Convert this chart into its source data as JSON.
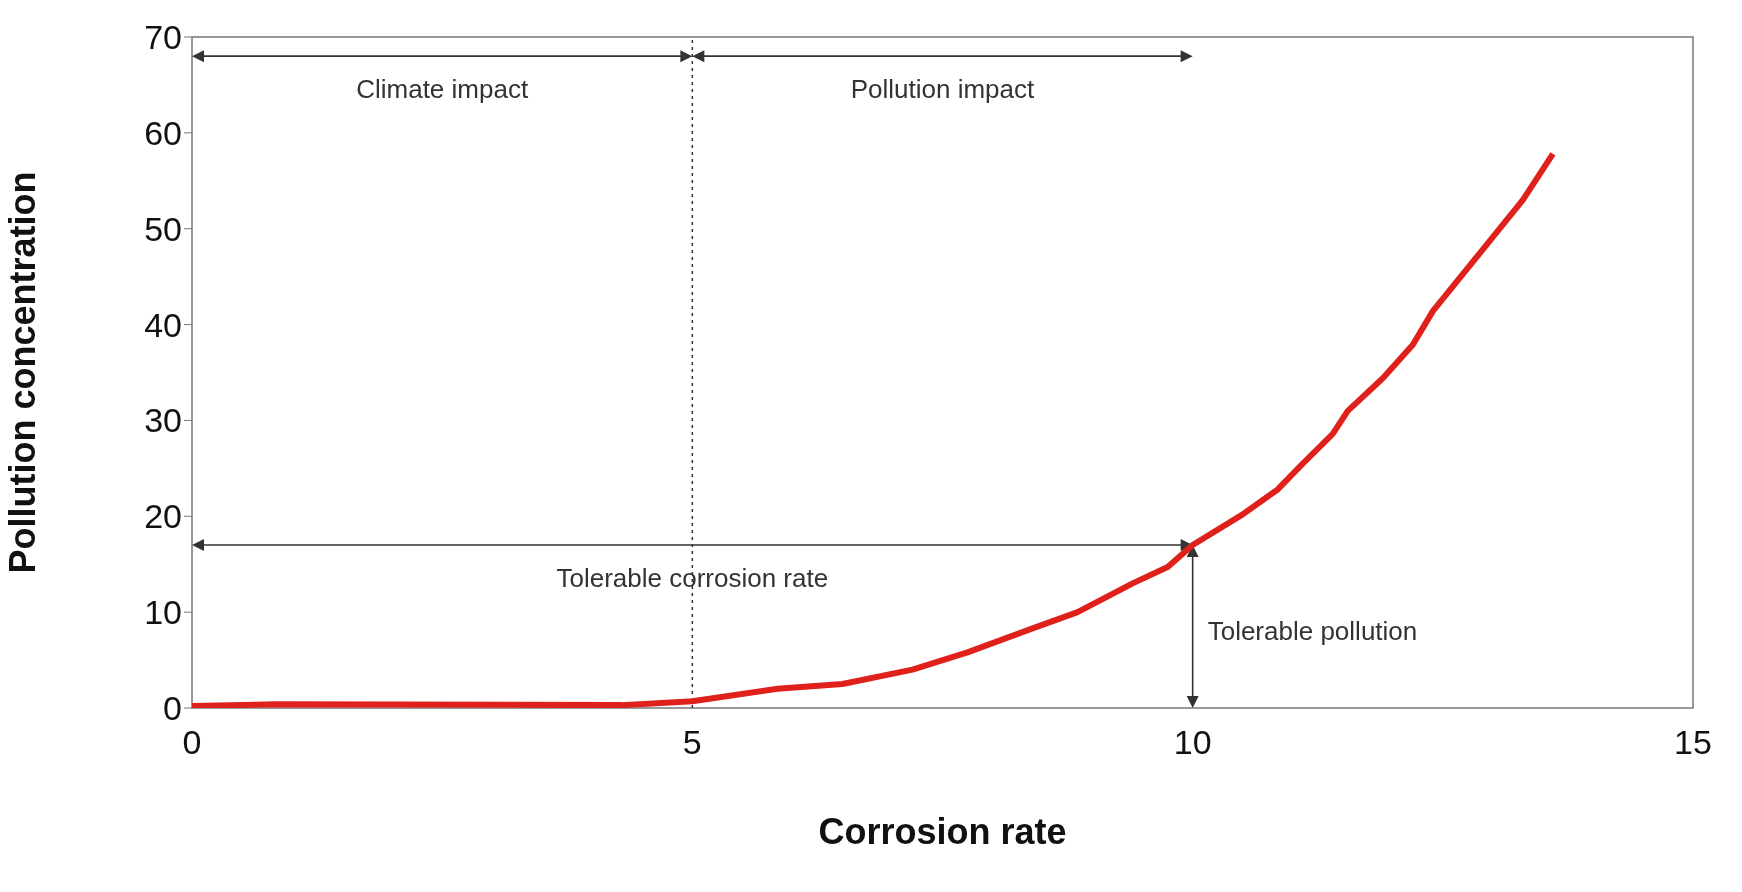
{
  "chart_data": {
    "type": "line",
    "xlabel": "Corrosion  rate",
    "ylabel": "Pollution  concentration",
    "xlim": [
      0,
      15
    ],
    "ylim": [
      0,
      70
    ],
    "xticks": [
      0,
      5,
      10,
      15
    ],
    "yticks": [
      0,
      10,
      20,
      30,
      40,
      50,
      60,
      70
    ],
    "grid": false,
    "legend": false,
    "marker": "none",
    "line_style": "solid",
    "series": [
      {
        "color": "#e0201b",
        "x": [
          0,
          0.85,
          4.3,
          5,
          5.85,
          6.5,
          7.2,
          7.75,
          8.4,
          8.85,
          9.4,
          9.75,
          10,
          10.5,
          10.85,
          11.1,
          11.4,
          11.55,
          11.9,
          12.2,
          12.4,
          12.85,
          13.3,
          13.6
        ],
        "values": [
          0.2,
          0.4,
          0.3,
          0.7,
          2,
          2.5,
          4,
          5.8,
          8.3,
          10,
          13,
          14.7,
          17,
          20.2,
          22.8,
          25.5,
          28.6,
          31,
          34.4,
          37.9,
          41.4,
          47.2,
          53,
          57.8
        ]
      }
    ],
    "ref_lines": [
      {
        "axis": "x",
        "value": 5,
        "line_style": "dotted",
        "color": "#333333"
      }
    ],
    "annotations": [
      "Climate impact",
      "Pollution impact",
      "Tolerable corrosion rate",
      "Tolerable pollution"
    ]
  }
}
